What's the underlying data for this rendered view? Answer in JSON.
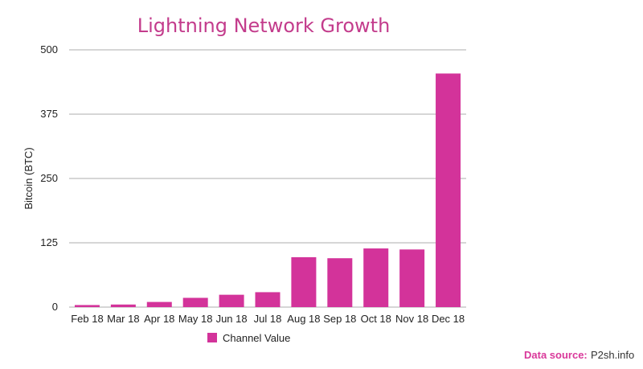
{
  "chart_data": {
    "type": "bar",
    "title": "Lightning Network Growth",
    "xlabel": "",
    "ylabel": "Bitcoin (BTC)",
    "categories": [
      "Feb 18",
      "Mar 18",
      "Apr 18",
      "May 18",
      "Jun 18",
      "Jul 18",
      "Aug 18",
      "Sep 18",
      "Oct 18",
      "Nov 18",
      "Dec 18"
    ],
    "series": [
      {
        "name": "Channel Value",
        "values": [
          4,
          5,
          10,
          18,
          24,
          29,
          97,
          95,
          114,
          112,
          454
        ]
      }
    ],
    "ylim": [
      0,
      500
    ],
    "yticks": [
      "500",
      "375",
      "250",
      "125",
      "0"
    ],
    "ytick_values": [
      500,
      375,
      250,
      125,
      0
    ],
    "grid": true,
    "legend_position": "bottom",
    "colors": {
      "bar": "#d3339a",
      "title": "#c33c8c",
      "source_label": "#d9389a"
    }
  },
  "source": {
    "label": "Data source:",
    "value": "P2sh.info"
  }
}
